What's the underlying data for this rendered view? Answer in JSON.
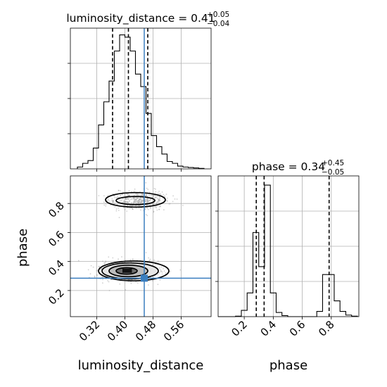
{
  "chart_data": {
    "type": "corner",
    "parameters": [
      "luminosity_distance",
      "phase"
    ],
    "titles": [
      {
        "parameter": "luminosity_distance",
        "prefix": "luminosity_distance = ",
        "median": "0.41",
        "plus": "+0.05",
        "minus": "−0.04"
      },
      {
        "parameter": "phase",
        "prefix": "phase = ",
        "median": "0.34",
        "plus": "+0.45",
        "minus": "−0.05"
      }
    ],
    "axis_labels": {
      "luminosity_distance": "luminosity_distance",
      "phase": "phase"
    },
    "ticks": {
      "luminosity_distance": [
        "0.32",
        "0.40",
        "0.48",
        "0.56"
      ],
      "phase": [
        "0.2",
        "0.4",
        "0.6",
        "0.8"
      ]
    },
    "ranges": {
      "luminosity_distance": [
        0.245,
        0.645
      ],
      "phase": [
        0.02,
        0.99
      ]
    },
    "truth": {
      "luminosity_distance": 0.455,
      "phase": 0.285
    },
    "quantiles": {
      "luminosity_distance": [
        0.365,
        0.41,
        0.465
      ],
      "phase": [
        0.283,
        0.337,
        0.785
      ]
    },
    "marginal_luminosity_distance": {
      "bin_edges": [
        0.265,
        0.28,
        0.295,
        0.31,
        0.325,
        0.34,
        0.355,
        0.37,
        0.385,
        0.4,
        0.415,
        0.43,
        0.445,
        0.46,
        0.475,
        0.49,
        0.505,
        0.52,
        0.535,
        0.55,
        0.565,
        0.58,
        0.595,
        0.61,
        0.625
      ],
      "counts": [
        4,
        12,
        18,
        45,
        95,
        145,
        190,
        255,
        290,
        285,
        255,
        205,
        178,
        120,
        72,
        48,
        32,
        16,
        12,
        6,
        4,
        3,
        2,
        1
      ]
    },
    "marginal_phase": {
      "bin_edges": [
        0.02,
        0.06,
        0.1,
        0.14,
        0.18,
        0.22,
        0.26,
        0.3,
        0.34,
        0.38,
        0.42,
        0.46,
        0.5,
        0.54,
        0.58,
        0.62,
        0.66,
        0.7,
        0.74,
        0.78,
        0.82,
        0.86,
        0.9,
        0.94,
        0.98
      ],
      "counts": [
        0,
        0,
        0,
        1,
        12,
        45,
        160,
        95,
        250,
        45,
        8,
        2,
        0,
        0,
        0,
        0,
        0,
        10,
        80,
        80,
        30,
        10,
        3,
        1
      ]
    },
    "clusters": [
      {
        "luminosity_distance": 0.415,
        "phase": 0.335,
        "sd_luminosity_distance": 0.033,
        "sd_phase": 0.028,
        "weight": 0.66
      },
      {
        "luminosity_distance": 0.44,
        "phase": 0.82,
        "sd_luminosity_distance": 0.035,
        "sd_phase": 0.028,
        "weight": 0.34
      }
    ],
    "contours": [
      {
        "cx": 0.405,
        "cy": 0.335,
        "rx": 0.03,
        "ry": 0.022
      },
      {
        "cx": 0.41,
        "cy": 0.335,
        "rx": 0.055,
        "ry": 0.04
      },
      {
        "cx": 0.415,
        "cy": 0.335,
        "rx": 0.08,
        "ry": 0.055
      },
      {
        "cx": 0.425,
        "cy": 0.335,
        "rx": 0.1,
        "ry": 0.068
      },
      {
        "cx": 0.43,
        "cy": 0.82,
        "rx": 0.055,
        "ry": 0.028
      },
      {
        "cx": 0.43,
        "cy": 0.825,
        "rx": 0.085,
        "ry": 0.05
      }
    ],
    "grid": true
  }
}
